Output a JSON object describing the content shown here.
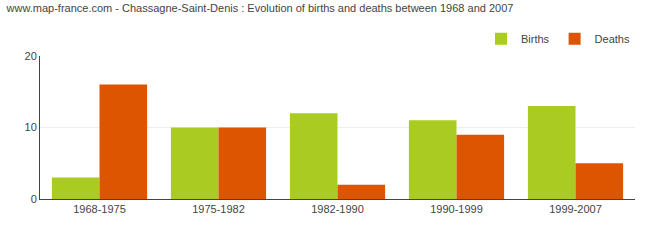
{
  "chart_data": {
    "type": "bar",
    "title": "www.map-france.com - Chassagne-Saint-Denis : Evolution of births and deaths between 1968 and 2007",
    "categories": [
      "1968-1975",
      "1975-1982",
      "1982-1990",
      "1990-1999",
      "1999-2007"
    ],
    "series": [
      {
        "name": "Births",
        "color": "#aacc22",
        "values": [
          3,
          10,
          12,
          11,
          13
        ]
      },
      {
        "name": "Deaths",
        "color": "#dd5500",
        "values": [
          16,
          10,
          2,
          9,
          5
        ]
      }
    ],
    "ylim": [
      0,
      20
    ],
    "yticks": [
      0,
      10,
      20
    ],
    "grid": true,
    "legend": "upper right"
  }
}
